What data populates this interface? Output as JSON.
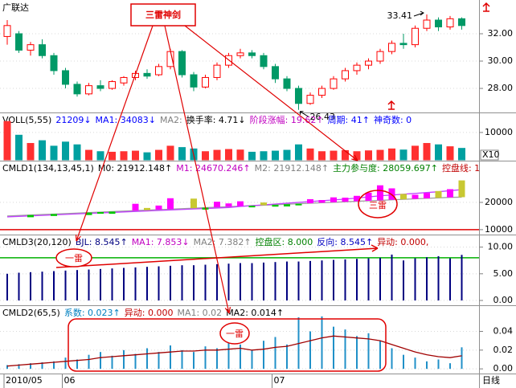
{
  "chart_data": [
    {
      "type": "candlestick",
      "title": "广联达",
      "open": [
        31.8,
        32.0,
        30.8,
        31.2,
        30.4,
        29.3,
        28.3,
        27.6,
        28.2,
        28.0,
        28.4,
        28.8,
        29.1,
        29.0,
        29.6,
        30.7,
        29.0,
        28.1,
        28.8,
        29.7,
        30.4,
        30.6,
        30.4,
        29.6,
        28.7,
        28.0,
        26.9,
        27.5,
        28.0,
        28.7,
        29.3,
        29.7,
        30.0,
        30.7,
        31.3,
        31.2,
        32.4,
        33.0,
        32.5,
        33.1
      ],
      "high": [
        33.0,
        32.2,
        31.4,
        31.6,
        30.6,
        29.5,
        28.5,
        28.4,
        28.6,
        28.6,
        28.9,
        29.3,
        29.4,
        29.8,
        30.9,
        30.8,
        29.2,
        29.0,
        29.9,
        30.6,
        30.9,
        30.8,
        30.6,
        29.8,
        28.9,
        28.2,
        27.7,
        28.2,
        28.9,
        29.5,
        29.9,
        30.2,
        30.9,
        31.5,
        32.0,
        32.6,
        33.41,
        33.2,
        33.3,
        33.2
      ],
      "low": [
        31.2,
        30.6,
        30.4,
        30.2,
        29.0,
        28.0,
        27.4,
        27.5,
        27.8,
        27.9,
        28.2,
        28.6,
        28.7,
        28.9,
        29.4,
        28.8,
        27.8,
        28.0,
        28.6,
        29.5,
        30.2,
        30.2,
        29.4,
        28.4,
        27.8,
        26.43,
        26.8,
        27.3,
        27.9,
        28.5,
        29.0,
        29.4,
        29.8,
        30.5,
        30.9,
        31.0,
        32.2,
        32.2,
        32.3,
        32.3
      ],
      "close": [
        32.6,
        30.8,
        31.2,
        30.4,
        29.3,
        28.3,
        27.6,
        28.2,
        28.0,
        28.5,
        28.8,
        29.1,
        28.9,
        29.6,
        30.7,
        29.0,
        28.1,
        28.8,
        29.7,
        30.4,
        30.6,
        30.4,
        29.6,
        28.7,
        28.0,
        26.9,
        27.5,
        28.0,
        28.7,
        29.3,
        29.7,
        30.0,
        30.7,
        31.3,
        31.2,
        32.4,
        33.0,
        32.5,
        33.1,
        32.6
      ],
      "up_color": "#ff0000",
      "down_color": "#009966",
      "ylim": [
        26.24,
        34.47
      ],
      "yticks": [
        {
          "value": 32,
          "label": "32.00"
        },
        {
          "value": 30,
          "label": "30.00"
        },
        {
          "value": 28,
          "label": "28.00"
        }
      ],
      "high_label": "33.41",
      "low_label": "26.43",
      "categories": [
        "2010/05",
        null,
        null,
        null,
        null,
        "06",
        null,
        null,
        null,
        null,
        null,
        null,
        null,
        null,
        null,
        null,
        null,
        null,
        null,
        null,
        null,
        null,
        null,
        "07",
        null,
        null,
        null,
        null,
        null,
        null,
        null,
        null,
        null,
        null,
        null,
        null,
        null,
        null,
        null,
        null
      ],
      "period_label": "日线",
      "annotations": [
        "三雷神剑",
        "一雷",
        "一雷",
        "三雷"
      ]
    },
    {
      "type": "bar",
      "header": [
        "VOLL(5,55)",
        "21209↓",
        "MA1: 34083↓",
        "MA2:",
        "换手率: 4.71↓",
        "阶段涨幅: 19.62↑",
        "周期: 41↑",
        "神奇数: 0"
      ],
      "header_colors": [
        "#000000",
        "#0000ff",
        "#0000ff",
        "#808080",
        "#000000",
        "#c000c0",
        "#0000ff",
        "#0000ff"
      ],
      "values": [
        14000,
        9000,
        6000,
        7000,
        5000,
        6500,
        5500,
        3500,
        3000,
        2800,
        3000,
        3200,
        2600,
        3500,
        5000,
        4500,
        4000,
        3000,
        3500,
        3800,
        3600,
        2800,
        3000,
        3200,
        3500,
        5500,
        4000,
        3000,
        3200,
        3400,
        3000,
        3300,
        3500,
        4000,
        3600,
        5000,
        6000,
        5500,
        4800,
        4200
      ],
      "up_color": "#ff3030",
      "down_color": "#00a0a0",
      "ylim": [
        0,
        17000
      ],
      "yticks": [
        10000
      ],
      "unit_label": "X10"
    },
    {
      "type": "combo",
      "header": [
        "CMLD1(134,13,45,1)",
        "M0: 21912.148↑",
        "M1: 24670.246↑",
        "M2: 21912.148↑",
        "主力参与度: 28059.697↑",
        "控盘线: 1"
      ],
      "header_colors": [
        "#000000",
        "#000000",
        "#c000c0",
        "#808080",
        "#008000",
        "#c00000"
      ],
      "ylim": [
        8200,
        35000
      ],
      "yticks": [
        20000,
        10000
      ],
      "ref_value": 10000,
      "ref_color": "#e00000",
      "series": [
        {
          "kind": "line",
          "color": "#a0a0a0",
          "values": [
            15000,
            15180,
            15360,
            15540,
            15720,
            15900,
            16080,
            16260,
            16440,
            16620,
            16800,
            16980,
            17160,
            17340,
            17520,
            17700,
            17880,
            18060,
            18240,
            18420,
            18600,
            18780,
            18960,
            19140,
            19320,
            19500,
            19680,
            19860,
            20040,
            20220,
            20400,
            20580,
            20760,
            20940,
            21120,
            21300,
            21480,
            21660,
            21840,
            21912.148
          ]
        },
        {
          "kind": "line",
          "color": "#c040ff",
          "values": [
            14700,
            14880,
            15060,
            15240,
            15420,
            15600,
            15780,
            15960,
            16140,
            16320,
            16500,
            16680,
            16860,
            17040,
            17220,
            17400,
            17580,
            17760,
            17940,
            18120,
            18500,
            18800,
            19100,
            19400,
            19700,
            20000,
            20300,
            20600,
            20900,
            21200,
            21600,
            22000,
            22400,
            22700,
            23000,
            23300,
            23600,
            23900,
            24300,
            24670.246
          ]
        },
        {
          "kind": "bar",
          "colors": {
            "up": "#ff00ff",
            "down": "#c8c832",
            "below": "#00c800"
          },
          "values": [
            null,
            null,
            14560,
            null,
            15020,
            null,
            null,
            15360,
            15840,
            15820,
            null,
            19480,
            17960,
            18840,
            21520,
            null,
            21380,
            17360,
            20240,
            19620,
            20400,
            18180,
            19960,
            18440,
            18520,
            18900,
            21180,
            20860,
            21840,
            21720,
            22400,
            23580,
            26260,
            25140,
            23120,
            22800,
            23480,
            24160,
            24840,
            28059.697
          ]
        }
      ]
    },
    {
      "type": "combo",
      "header": [
        "CMLD3(20,120)",
        "BJL: 8.545↑",
        "MA1: 7.853↓",
        "MA2: 7.382↑",
        "控盘区: 8.000",
        "反向: 8.545↑",
        "异动: 0.000,"
      ],
      "header_colors": [
        "#000000",
        "#000080",
        "#c000c0",
        "#808080",
        "#008000",
        "#0000c0",
        "#c00000"
      ],
      "ylim": [
        -0.9,
        12.2
      ],
      "yticks": [
        {
          "value": 10,
          "label": "10.00"
        },
        {
          "value": 5,
          "label": "5.00"
        },
        {
          "value": 0,
          "label": "0.00"
        }
      ],
      "ref_value": 8,
      "ref_color": "#00b000",
      "series": [
        {
          "kind": "bar",
          "color": "#000080",
          "values": [
            5.0,
            5.2,
            5.3,
            5.4,
            5.5,
            5.6,
            5.7,
            5.8,
            5.9,
            6.0,
            6.1,
            6.2,
            6.3,
            6.4,
            6.5,
            6.6,
            6.6,
            6.7,
            6.8,
            6.9,
            7.0,
            7.0,
            7.1,
            7.2,
            7.3,
            7.3,
            7.4,
            7.5,
            7.6,
            7.7,
            7.8,
            7.9,
            8.0,
            8.6,
            7.5,
            7.9,
            8.1,
            8.3,
            7.9,
            8.545
          ]
        }
      ]
    },
    {
      "type": "combo",
      "header": [
        "CMLD2(65,5)",
        "系数: 0.023↑",
        "异动: 0.000",
        "MA1: 0.02",
        "MA2: 0.014↑"
      ],
      "header_colors": [
        "#000000",
        "#0080c0",
        "#c00000",
        "#808080",
        "#000000"
      ],
      "ylim": [
        -0.005,
        0.067
      ],
      "yticks": [
        0.04,
        0.02,
        {
          "value": 0,
          "label": "0.00"
        }
      ],
      "series": [
        {
          "kind": "bar",
          "color": "#2090c8",
          "values": [
            0.004,
            0.005,
            0.006,
            0.007,
            0.008,
            0.012,
            0.01,
            0.015,
            0.018,
            0.014,
            0.02,
            0.016,
            0.022,
            0.018,
            0.025,
            0.02,
            0.018,
            0.024,
            0.022,
            0.028,
            0.026,
            0.02,
            0.03,
            0.034,
            0.026,
            0.055,
            0.04,
            0.056,
            0.045,
            0.042,
            0.035,
            0.038,
            0.03,
            0.022,
            0.015,
            0.012,
            0.008,
            0.01,
            0.006,
            0.023
          ]
        },
        {
          "kind": "line",
          "color": "#a00000",
          "values": [
            0.003,
            0.004,
            0.005,
            0.006,
            0.007,
            0.008,
            0.009,
            0.01,
            0.012,
            0.013,
            0.014,
            0.015,
            0.016,
            0.017,
            0.018,
            0.019,
            0.019,
            0.02,
            0.02,
            0.021,
            0.022,
            0.02,
            0.021,
            0.023,
            0.024,
            0.027,
            0.03,
            0.033,
            0.035,
            0.034,
            0.033,
            0.032,
            0.03,
            0.026,
            0.022,
            0.018,
            0.015,
            0.013,
            0.012,
            0.014
          ]
        }
      ]
    }
  ]
}
